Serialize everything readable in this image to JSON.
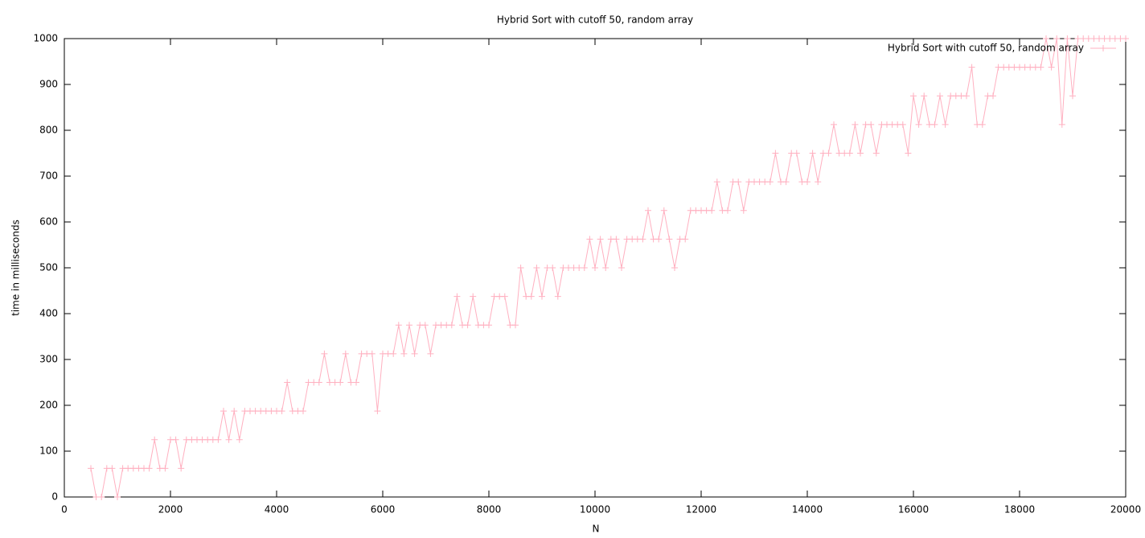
{
  "chart_data": {
    "type": "line",
    "title": "Hybrid Sort with cutoff 50, random array",
    "x_label": "N",
    "y_label": "time in milliseconds",
    "xlim": [
      0,
      20000
    ],
    "ylim": [
      0,
      1000
    ],
    "xticks": [
      0,
      2000,
      4000,
      6000,
      8000,
      10000,
      12000,
      14000,
      16000,
      18000,
      20000
    ],
    "yticks": [
      0,
      100,
      200,
      300,
      400,
      500,
      600,
      700,
      800,
      900,
      1000
    ],
    "grid": false,
    "legend": "top-right",
    "series": [
      {
        "name": "Hybrid Sort with cutoff 50, random array",
        "color": "#ffb0c0",
        "marker": "+",
        "x": [
          500,
          600,
          700,
          800,
          900,
          1000,
          1100,
          1200,
          1300,
          1400,
          1500,
          1600,
          1700,
          1800,
          1900,
          2000,
          2100,
          2200,
          2300,
          2400,
          2500,
          2600,
          2700,
          2800,
          2900,
          3000,
          3100,
          3200,
          3300,
          3400,
          3500,
          3600,
          3700,
          3800,
          3900,
          4000,
          4100,
          4200,
          4300,
          4400,
          4500,
          4600,
          4700,
          4800,
          4900,
          5000,
          5100,
          5200,
          5300,
          5400,
          5500,
          5600,
          5700,
          5800,
          5900,
          6000,
          6100,
          6200,
          6300,
          6400,
          6500,
          6600,
          6700,
          6800,
          6900,
          7000,
          7100,
          7200,
          7300,
          7400,
          7500,
          7600,
          7700,
          7800,
          7900,
          8000,
          8100,
          8200,
          8300,
          8400,
          8500,
          8600,
          8700,
          8800,
          8900,
          9000,
          9100,
          9200,
          9300,
          9400,
          9500,
          9600,
          9700,
          9800,
          9900,
          10000,
          10100,
          10200,
          10300,
          10400,
          10500,
          10600,
          10700,
          10800,
          10900,
          11000,
          11100,
          11200,
          11300,
          11400,
          11500,
          11600,
          11700,
          11800,
          11900,
          12000,
          12100,
          12200,
          12300,
          12400,
          12500,
          12600,
          12700,
          12800,
          12900,
          13000,
          13100,
          13200,
          13300,
          13400,
          13500,
          13600,
          13700,
          13800,
          13900,
          14000,
          14100,
          14200,
          14300,
          14400,
          14500,
          14600,
          14700,
          14800,
          14900,
          15000,
          15100,
          15200,
          15300,
          15400,
          15500,
          15600,
          15700,
          15800,
          15900,
          16000,
          16100,
          16200,
          16300,
          16400,
          16500,
          16600,
          16700,
          16800,
          16900,
          17000,
          17100,
          17200,
          17300,
          17400,
          17500,
          17600,
          17700,
          17800,
          17900,
          18000,
          18100,
          18200,
          18300,
          18400,
          18500,
          18600,
          18700,
          18800,
          18900,
          19000,
          19100,
          19200,
          19300,
          19400,
          19500,
          19600,
          19700,
          19800,
          19900,
          20000
        ],
        "values": [
          62.5,
          0,
          0,
          62.5,
          62.5,
          0,
          62.5,
          62.5,
          62.5,
          62.5,
          62.5,
          62.5,
          125,
          62.5,
          62.5,
          125,
          125,
          62.5,
          125,
          125,
          125,
          125,
          125,
          125,
          125,
          187.5,
          125,
          187.5,
          125,
          187.5,
          187.5,
          187.5,
          187.5,
          187.5,
          187.5,
          187.5,
          187.5,
          250,
          187.5,
          187.5,
          187.5,
          250,
          250,
          250,
          312.5,
          250,
          250,
          250,
          312.5,
          250,
          250,
          312.5,
          312.5,
          312.5,
          187.5,
          312.5,
          312.5,
          312.5,
          375,
          312.5,
          375,
          312.5,
          375,
          375,
          312.5,
          375,
          375,
          375,
          375,
          437.5,
          375,
          375,
          437.5,
          375,
          375,
          375,
          437.5,
          437.5,
          437.5,
          375,
          375,
          500,
          437.5,
          437.5,
          500,
          437.5,
          500,
          500,
          437.5,
          500,
          500,
          500,
          500,
          500,
          562.5,
          500,
          562.5,
          500,
          562.5,
          562.5,
          500,
          562.5,
          562.5,
          562.5,
          562.5,
          625,
          562.5,
          562.5,
          625,
          562.5,
          500,
          562.5,
          562.5,
          625,
          625,
          625,
          625,
          625,
          687.5,
          625,
          625,
          687.5,
          687.5,
          625,
          687.5,
          687.5,
          687.5,
          687.5,
          687.5,
          750,
          687.5,
          687.5,
          750,
          750,
          687.5,
          687.5,
          750,
          687.5,
          750,
          750,
          812.5,
          750,
          750,
          750,
          812.5,
          750,
          812.5,
          812.5,
          750,
          812.5,
          812.5,
          812.5,
          812.5,
          812.5,
          750,
          875,
          812.5,
          875,
          812.5,
          812.5,
          875,
          812.5,
          875,
          875,
          875,
          875,
          937.5,
          812.5,
          812.5,
          875,
          875,
          937.5,
          937.5,
          937.5,
          937.5,
          937.5,
          937.5,
          937.5,
          937.5,
          937.5,
          1000,
          937.5,
          1000,
          812.5,
          1000,
          875,
          1000,
          1000,
          1000,
          1000,
          1000,
          1000,
          1000,
          1000,
          1000,
          1000
        ]
      }
    ]
  }
}
